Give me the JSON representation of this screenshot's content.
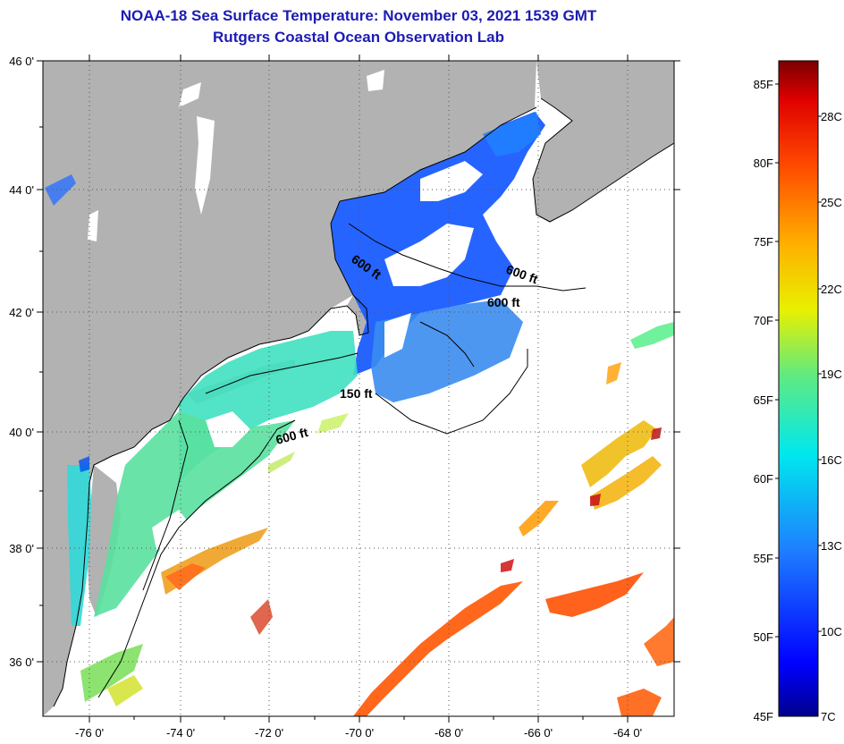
{
  "header": {
    "title": "NOAA-18 Sea Surface Temperature:  November 03, 2021 1539 GMT",
    "subtitle": "Rutgers Coastal Ocean Observation Lab"
  },
  "axes": {
    "lat_labels": [
      "46 0'",
      "44 0'",
      "42 0'",
      "40 0'",
      "38 0'",
      "36 0'"
    ],
    "lon_labels": [
      "-76 0'",
      "-74 0'",
      "-72 0'",
      "-70 0'",
      "-68 0'",
      "-66 0'",
      "-64 0'"
    ]
  },
  "contours": {
    "labels": [
      "600 ft",
      "600 ft",
      "600 ft",
      "150 ft",
      "600 ft"
    ]
  },
  "colorbar": {
    "f_labels": [
      "85F",
      "80F",
      "75F",
      "70F",
      "65F",
      "60F",
      "55F",
      "50F",
      "45F"
    ],
    "c_labels": [
      "28C",
      "25C",
      "22C",
      "19C",
      "16C",
      "13C",
      "10C",
      "7C"
    ]
  },
  "colors": {
    "land": "#b2b2b2",
    "ocean_nodata": "#ffffff",
    "title": "#1c1cb4",
    "cold": "#00008c",
    "hot": "#7a0000"
  }
}
